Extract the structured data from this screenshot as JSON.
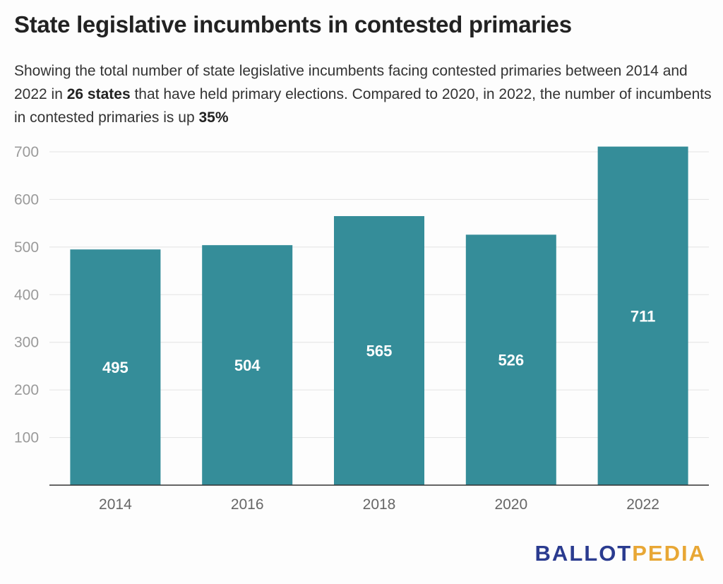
{
  "header": {
    "title": "State legislative incumbents in contested primaries",
    "subtitle_part1": "Showing the total number of state legislative incumbents facing contested primaries between 2014 and 2022 in ",
    "subtitle_bold1": "26 states",
    "subtitle_part2": " that have held primary elections. Compared to 2020, in 2022, the number of incumbents in contested primaries is up ",
    "subtitle_bold2": "35%"
  },
  "chart_data": {
    "type": "bar",
    "title": "State legislative incumbents in contested primaries",
    "categories": [
      "2014",
      "2016",
      "2018",
      "2020",
      "2022"
    ],
    "values": [
      495,
      504,
      565,
      526,
      711
    ],
    "data_labels": [
      "495",
      "504",
      "565",
      "526",
      "711"
    ],
    "xlabel": "",
    "ylabel": "",
    "ylim": [
      0,
      700
    ],
    "yticks": [
      100,
      200,
      300,
      400,
      500,
      600,
      700
    ],
    "grid": true,
    "legend": "none"
  },
  "logo": {
    "part1": "BALLOT",
    "part2": "PEDIA",
    "color1": "#2a3b8f",
    "color2": "#e8a735"
  },
  "colors": {
    "bar": "#358d99"
  }
}
